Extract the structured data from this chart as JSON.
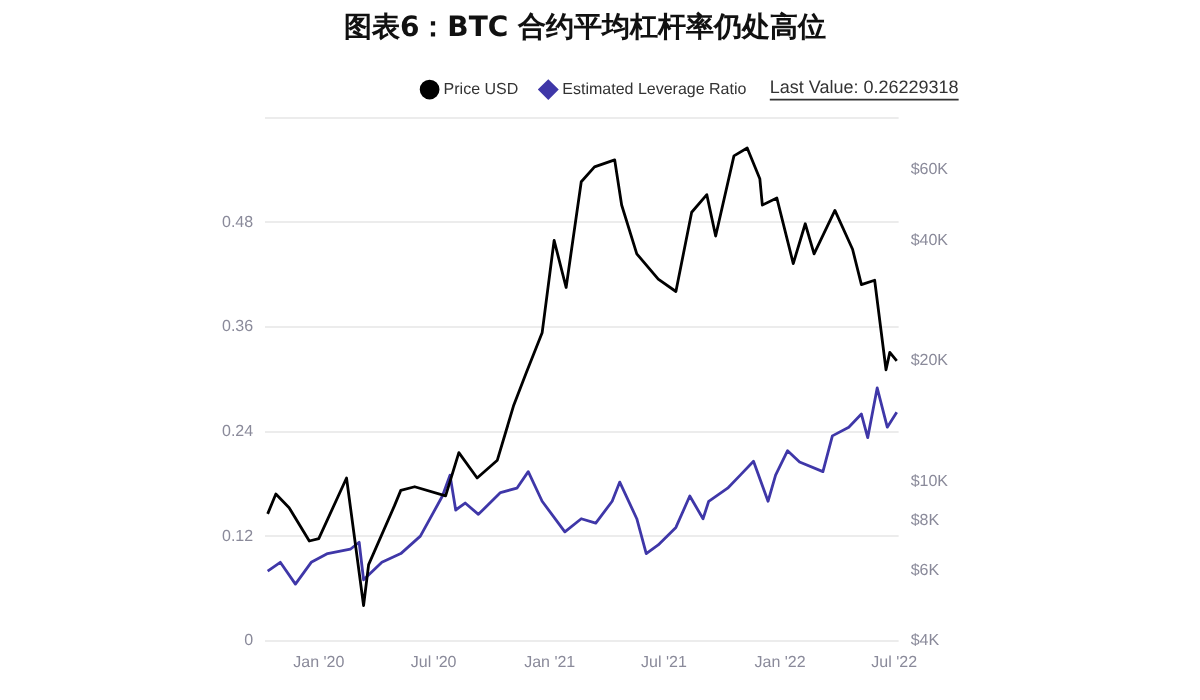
{
  "chart_data": {
    "type": "line",
    "title": "图表6：BTC 合约平均杠杆率仍处高位",
    "annotations": [
      "Last Value: 0.26229318"
    ],
    "legend": "top",
    "grid": "y",
    "log": "y2",
    "xlim": [
      "2019-10-08",
      "2022-07-08"
    ],
    "xticks": [
      {
        "value": "2020-01-01",
        "label": "Jan '20"
      },
      {
        "value": "2020-07-01",
        "label": "Jul '20"
      },
      {
        "value": "2021-01-01",
        "label": "Jan '21"
      },
      {
        "value": "2021-07-01",
        "label": "Jul '21"
      },
      {
        "value": "2022-01-01",
        "label": "Jan '22"
      },
      {
        "value": "2022-07-01",
        "label": "Jul '22"
      }
    ],
    "ylim": [
      0,
      0.6
    ],
    "yticks": [
      0,
      0.12,
      0.24,
      0.36,
      0.48,
      {
        "value": 0.6,
        "label": null
      }
    ],
    "y2lim": [
      4000,
      81000
    ],
    "y2ticks": [
      {
        "value": 4000,
        "label": "$4K"
      },
      {
        "value": 6000,
        "label": "$6K"
      },
      {
        "value": 8000,
        "label": "$8K"
      },
      {
        "value": 10000,
        "label": "$10K"
      },
      {
        "value": 20000,
        "label": "$20K"
      },
      {
        "value": 40000,
        "label": "$40K"
      },
      {
        "value": 60000,
        "label": "$60K"
      }
    ],
    "series": [
      {
        "name": "Price USD",
        "color": "#000000",
        "axis": "y2",
        "x": [
          "2019-10-12",
          "2019-10-25",
          "2019-11-15",
          "2019-12-17",
          "2020-01-01",
          "2020-02-14",
          "2020-03-12",
          "2020-03-20",
          "2020-04-30",
          "2020-05-10",
          "2020-06-01",
          "2020-07-20",
          "2020-08-10",
          "2020-09-08",
          "2020-10-10",
          "2020-11-05",
          "2020-11-25",
          "2020-12-20",
          "2021-01-08",
          "2021-01-27",
          "2021-02-20",
          "2021-03-13",
          "2021-04-14",
          "2021-04-25",
          "2021-05-19",
          "2021-06-22",
          "2021-07-20",
          "2021-08-14",
          "2021-09-07",
          "2021-09-21",
          "2021-10-20",
          "2021-11-10",
          "2021-11-30",
          "2021-12-04",
          "2021-12-27",
          "2022-01-22",
          "2022-02-10",
          "2022-02-24",
          "2022-03-29",
          "2022-04-26",
          "2022-05-10",
          "2022-05-31",
          "2022-06-18",
          "2022-06-24",
          "2022-07-05"
        ],
        "values": [
          8300,
          9300,
          8600,
          7100,
          7200,
          10200,
          4900,
          6200,
          8700,
          9500,
          9700,
          9200,
          11800,
          10200,
          11300,
          15500,
          18700,
          23500,
          40000,
          30500,
          56000,
          61000,
          63500,
          49000,
          37000,
          32000,
          29800,
          47000,
          52000,
          41000,
          65000,
          68000,
          57000,
          49000,
          51000,
          35000,
          44000,
          37000,
          47500,
          38000,
          31000,
          31800,
          19000,
          21000,
          20000
        ]
      },
      {
        "name": "Estimated Leverage Ratio",
        "color": "#3f37a8",
        "x": [
          "2019-10-12",
          "2019-11-01",
          "2019-11-25",
          "2019-12-20",
          "2020-01-15",
          "2020-02-20",
          "2020-03-05",
          "2020-03-12",
          "2020-04-10",
          "2020-05-10",
          "2020-06-10",
          "2020-07-15",
          "2020-07-27",
          "2020-08-05",
          "2020-08-20",
          "2020-09-10",
          "2020-10-15",
          "2020-11-10",
          "2020-11-28",
          "2020-12-20",
          "2021-01-25",
          "2021-02-20",
          "2021-03-15",
          "2021-04-10",
          "2021-04-22",
          "2021-05-19",
          "2021-06-03",
          "2021-06-22",
          "2021-07-20",
          "2021-08-11",
          "2021-09-01",
          "2021-09-10",
          "2021-10-10",
          "2021-10-30",
          "2021-11-20",
          "2021-12-13",
          "2021-12-25",
          "2022-01-13",
          "2022-02-01",
          "2022-03-10",
          "2022-03-25",
          "2022-04-20",
          "2022-05-10",
          "2022-05-20",
          "2022-06-04",
          "2022-06-20",
          "2022-07-05"
        ],
        "values": [
          0.08,
          0.09,
          0.065,
          0.09,
          0.1,
          0.105,
          0.113,
          0.07,
          0.09,
          0.1,
          0.12,
          0.166,
          0.19,
          0.15,
          0.158,
          0.145,
          0.17,
          0.175,
          0.194,
          0.16,
          0.125,
          0.14,
          0.135,
          0.16,
          0.182,
          0.14,
          0.1,
          0.11,
          0.13,
          0.166,
          0.14,
          0.16,
          0.175,
          0.19,
          0.206,
          0.16,
          0.19,
          0.218,
          0.205,
          0.194,
          0.235,
          0.245,
          0.26,
          0.233,
          0.29,
          0.245,
          0.262
        ]
      }
    ]
  }
}
